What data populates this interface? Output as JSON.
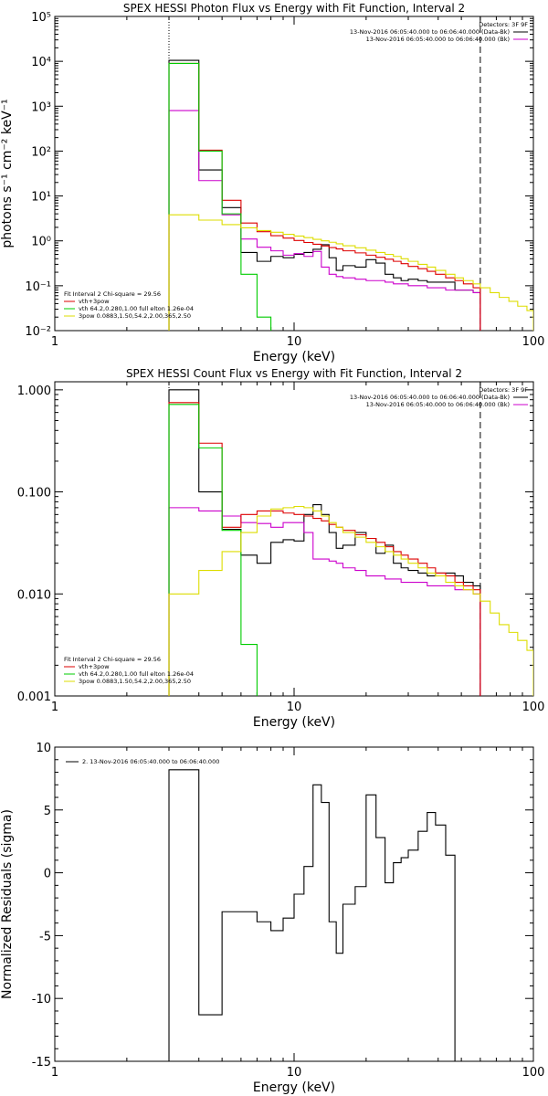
{
  "chart_data": [
    {
      "type": "line",
      "title": "SPEX HESSI Photon Flux vs Energy with Fit Function, Interval 2",
      "xlabel": "Energy (keV)",
      "ylabel": "photons s⁻¹ cm⁻² keV⁻¹",
      "xscale": "log",
      "yscale": "log",
      "xlim": [
        1,
        100
      ],
      "ylim": [
        0.01,
        100000
      ],
      "xticks": [
        {
          "v": 1,
          "label": "1"
        },
        {
          "v": 10,
          "label": "10"
        },
        {
          "v": 100,
          "label": "100"
        }
      ],
      "yticks": [
        {
          "v": 0.01,
          "label": "10⁻²"
        },
        {
          "v": 0.1,
          "label": "10⁻¹"
        },
        {
          "v": 1,
          "label": "10⁰"
        },
        {
          "v": 10,
          "label": "10¹"
        },
        {
          "v": 100,
          "label": "10²"
        },
        {
          "v": 1000,
          "label": "10³"
        },
        {
          "v": 10000,
          "label": "10⁴"
        },
        {
          "v": 100000,
          "label": "10⁵"
        }
      ],
      "vlines": [
        {
          "x": 3.0,
          "style": "dotted",
          "color": "#000000"
        },
        {
          "x": 60.0,
          "style": "dashed",
          "color": "#000000"
        }
      ],
      "legend_top": {
        "header": "Detectors: 3F 9F",
        "items": [
          {
            "label": "13-Nov-2016 06:05:40.000 to 06:06:40.000 (Data-Bk)",
            "color": "#000000"
          },
          {
            "label": "13-Nov-2016 06:05:40.000 to 06:06:40.000 (Bk)",
            "color": "#cc00cc"
          }
        ]
      },
      "legend_bottom": {
        "header": "Fit Interval 2   Chi-square = 29.56",
        "items": [
          {
            "label": "vth+3pow",
            "color": "#dd0000"
          },
          {
            "label": "vth 64.2,0.280,1.00  full elton 1.26e-04",
            "color": "#00cc00"
          },
          {
            "label": "3pow 0.0883,1.50,54.2,2.00,365,2.50",
            "color": "#dddd00"
          }
        ]
      },
      "edges": [
        3,
        4,
        5,
        6,
        7,
        8,
        9,
        10,
        11,
        12,
        13,
        14,
        15,
        16,
        18,
        20,
        22,
        24,
        26,
        28,
        30,
        33,
        36,
        39,
        43,
        47,
        51,
        56,
        60,
        66,
        72,
        79,
        86,
        94,
        100
      ],
      "series": [
        {
          "name": "Data-Bk",
          "color": "#000000",
          "values": [
            10500,
            38,
            5.5,
            0.55,
            0.35,
            0.45,
            0.42,
            0.5,
            0.55,
            0.65,
            0.82,
            0.42,
            0.22,
            0.28,
            0.26,
            0.38,
            0.32,
            0.18,
            0.15,
            0.13,
            0.14,
            0.13,
            0.12,
            0.12,
            0.12,
            0.08,
            0.08,
            0.07
          ]
        },
        {
          "name": "Bk",
          "color": "#cc00cc",
          "values": [
            800,
            22,
            3.8,
            1.1,
            0.72,
            0.6,
            0.48,
            0.52,
            0.45,
            0.58,
            0.26,
            0.18,
            0.16,
            0.15,
            0.14,
            0.13,
            0.13,
            0.12,
            0.11,
            0.11,
            0.1,
            0.1,
            0.09,
            0.09,
            0.08,
            0.08,
            0.08,
            0.07
          ]
        },
        {
          "name": "vth+3pow",
          "color": "#dd0000",
          "values": [
            9000,
            105,
            8.0,
            2.5,
            1.6,
            1.3,
            1.15,
            1.02,
            0.92,
            0.84,
            0.77,
            0.71,
            0.66,
            0.6,
            0.54,
            0.48,
            0.43,
            0.39,
            0.35,
            0.31,
            0.27,
            0.24,
            0.21,
            0.18,
            0.15,
            0.13,
            0.11,
            0.09
          ]
        },
        {
          "name": "vth",
          "color": "#00cc00",
          "values": [
            9000,
            100,
            4.0,
            0.18,
            0.02
          ]
        },
        {
          "name": "3pow",
          "color": "#dddd00",
          "values": [
            3.8,
            2.9,
            2.3,
            1.95,
            1.7,
            1.55,
            1.4,
            1.28,
            1.18,
            1.08,
            1.0,
            0.93,
            0.86,
            0.78,
            0.7,
            0.62,
            0.55,
            0.5,
            0.45,
            0.4,
            0.35,
            0.3,
            0.26,
            0.22,
            0.18,
            0.15,
            0.13,
            0.11,
            0.09,
            0.07,
            0.055,
            0.045,
            0.035,
            0.028
          ]
        }
      ]
    },
    {
      "type": "line",
      "title": "SPEX HESSI Count Flux vs Energy with Fit Function, Interval 2",
      "xlabel": "Energy (keV)",
      "ylabel": "",
      "xscale": "log",
      "yscale": "log",
      "xlim": [
        1,
        100
      ],
      "ylim": [
        0.001,
        1.2
      ],
      "xticks": [
        {
          "v": 1,
          "label": "1"
        },
        {
          "v": 10,
          "label": "10"
        },
        {
          "v": 100,
          "label": "100"
        }
      ],
      "yticks": [
        {
          "v": 0.001,
          "label": "0.001"
        },
        {
          "v": 0.01,
          "label": "0.010"
        },
        {
          "v": 0.1,
          "label": "0.100"
        },
        {
          "v": 1,
          "label": "1.000"
        }
      ],
      "vlines": [
        {
          "x": 3.0,
          "style": "dotted",
          "color": "#000000"
        },
        {
          "x": 60.0,
          "style": "dashed",
          "color": "#000000"
        }
      ],
      "legend_top": {
        "header": "Detectors: 3F 9F",
        "items": [
          {
            "label": "13-Nov-2016 06:05:40.000 to 06:06:40.000 (Data-Bk)",
            "color": "#000000"
          },
          {
            "label": "13-Nov-2016 06:05:40.000 to 06:06:40.000 (Bk)",
            "color": "#cc00cc"
          }
        ]
      },
      "legend_bottom": {
        "header": "Fit Interval 2   Chi-square = 29.56",
        "items": [
          {
            "label": "vth+3pow",
            "color": "#dd0000"
          },
          {
            "label": "vth 64.2,0.280,1.00  full elton 1.26e-04",
            "color": "#00cc00"
          },
          {
            "label": "3pow 0.0883,1.50,54.2,2.00,365,2.50",
            "color": "#dddd00"
          }
        ]
      },
      "edges": [
        3,
        4,
        5,
        6,
        7,
        8,
        9,
        10,
        11,
        12,
        13,
        14,
        15,
        16,
        18,
        20,
        22,
        24,
        26,
        28,
        30,
        33,
        36,
        39,
        43,
        47,
        51,
        56,
        60,
        66,
        72,
        79,
        86,
        94,
        100
      ],
      "series": [
        {
          "name": "Data-Bk",
          "color": "#000000",
          "values": [
            1.0,
            0.1,
            0.043,
            0.024,
            0.02,
            0.032,
            0.034,
            0.033,
            0.06,
            0.075,
            0.06,
            0.04,
            0.028,
            0.03,
            0.04,
            0.035,
            0.025,
            0.03,
            0.02,
            0.018,
            0.017,
            0.016,
            0.015,
            0.016,
            0.016,
            0.015,
            0.013,
            0.012
          ]
        },
        {
          "name": "Bk",
          "color": "#cc00cc",
          "values": [
            0.07,
            0.065,
            0.058,
            0.05,
            0.049,
            0.045,
            0.05,
            0.05,
            0.04,
            0.022,
            0.022,
            0.021,
            0.02,
            0.018,
            0.017,
            0.015,
            0.015,
            0.014,
            0.014,
            0.013,
            0.013,
            0.013,
            0.012,
            0.012,
            0.012,
            0.011,
            0.011,
            0.01
          ]
        },
        {
          "name": "vth+3pow",
          "color": "#dd0000",
          "values": [
            0.75,
            0.3,
            0.045,
            0.06,
            0.065,
            0.065,
            0.062,
            0.06,
            0.058,
            0.055,
            0.052,
            0.048,
            0.045,
            0.042,
            0.038,
            0.035,
            0.032,
            0.029,
            0.026,
            0.024,
            0.022,
            0.02,
            0.018,
            0.016,
            0.015,
            0.013,
            0.012,
            0.011
          ]
        },
        {
          "name": "vth",
          "color": "#00cc00",
          "values": [
            0.72,
            0.27,
            0.042,
            0.0032
          ]
        },
        {
          "name": "3pow",
          "color": "#dddd00",
          "values": [
            0.01,
            0.017,
            0.026,
            0.04,
            0.058,
            0.068,
            0.07,
            0.072,
            0.07,
            0.065,
            0.058,
            0.05,
            0.045,
            0.04,
            0.036,
            0.032,
            0.029,
            0.026,
            0.024,
            0.022,
            0.02,
            0.018,
            0.016,
            0.015,
            0.013,
            0.012,
            0.011,
            0.01,
            0.0085,
            0.0065,
            0.005,
            0.0042,
            0.0035,
            0.0028
          ]
        }
      ]
    },
    {
      "type": "line",
      "title": "",
      "xlabel": "Energy (keV)",
      "ylabel": "Normalized Residuals (sigma)",
      "xscale": "log",
      "yscale": "linear",
      "xlim": [
        1,
        100
      ],
      "ylim": [
        -15,
        10
      ],
      "xticks": [
        {
          "v": 1,
          "label": "1"
        },
        {
          "v": 10,
          "label": "10"
        },
        {
          "v": 100,
          "label": "100"
        }
      ],
      "yticks": [
        {
          "v": -15,
          "label": "-15"
        },
        {
          "v": -10,
          "label": "-10"
        },
        {
          "v": -5,
          "label": "-5"
        },
        {
          "v": 0,
          "label": "0"
        },
        {
          "v": 5,
          "label": "5"
        },
        {
          "v": 10,
          "label": "10"
        }
      ],
      "legend_top": {
        "header": "",
        "items": [
          {
            "label": "2. 13-Nov-2016 06:05:40.000 to 06:06:40.000",
            "color": "#000000"
          }
        ]
      },
      "edges": [
        3,
        4,
        5,
        6,
        7,
        8,
        9,
        10,
        11,
        12,
        13,
        14,
        15,
        16,
        18,
        20,
        22,
        24,
        26,
        28,
        30,
        33,
        36,
        39,
        43,
        47,
        51,
        56,
        60
      ],
      "series": [
        {
          "name": "",
          "color": "#000000",
          "values": [
            8.2,
            -11.3,
            -3.1,
            -3.1,
            -3.9,
            -4.6,
            -3.6,
            -1.7,
            0.5,
            7.0,
            5.6,
            -3.9,
            -6.4,
            -2.5,
            -1.1,
            6.2,
            2.8,
            -0.8,
            0.8,
            1.2,
            1.8,
            3.3,
            4.8,
            3.8,
            1.4
          ]
        }
      ]
    }
  ]
}
